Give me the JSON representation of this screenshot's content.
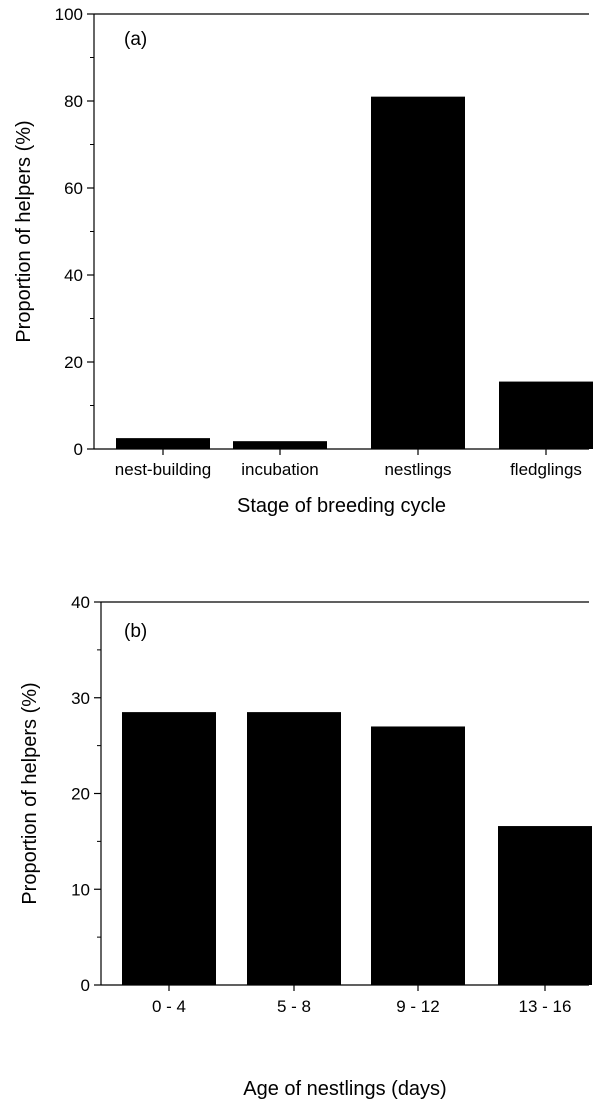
{
  "chart_data": [
    {
      "type": "bar",
      "panel_label": "(a)",
      "categories": [
        "nest-building",
        "incubation",
        "nestlings",
        "fledglings"
      ],
      "values": [
        2.5,
        1.8,
        81,
        15.5
      ],
      "xlabel": "Stage of breeding cycle",
      "ylabel": "Proportion of helpers (%)",
      "ylim": [
        0,
        100
      ],
      "yticks": [
        0,
        20,
        40,
        60,
        80,
        100
      ],
      "grid": false,
      "bar_color": "#000000"
    },
    {
      "type": "bar",
      "panel_label": "(b)",
      "categories": [
        "0 - 4",
        "5 - 8",
        "9 - 12",
        "13 - 16"
      ],
      "values": [
        28.5,
        28.5,
        27,
        16.6
      ],
      "xlabel": "Age of nestlings (days)",
      "ylabel": "Proportion of helpers (%)",
      "ylim": [
        0,
        40
      ],
      "yticks": [
        0,
        10,
        20,
        30,
        40
      ],
      "grid": false,
      "bar_color": "#000000"
    }
  ]
}
